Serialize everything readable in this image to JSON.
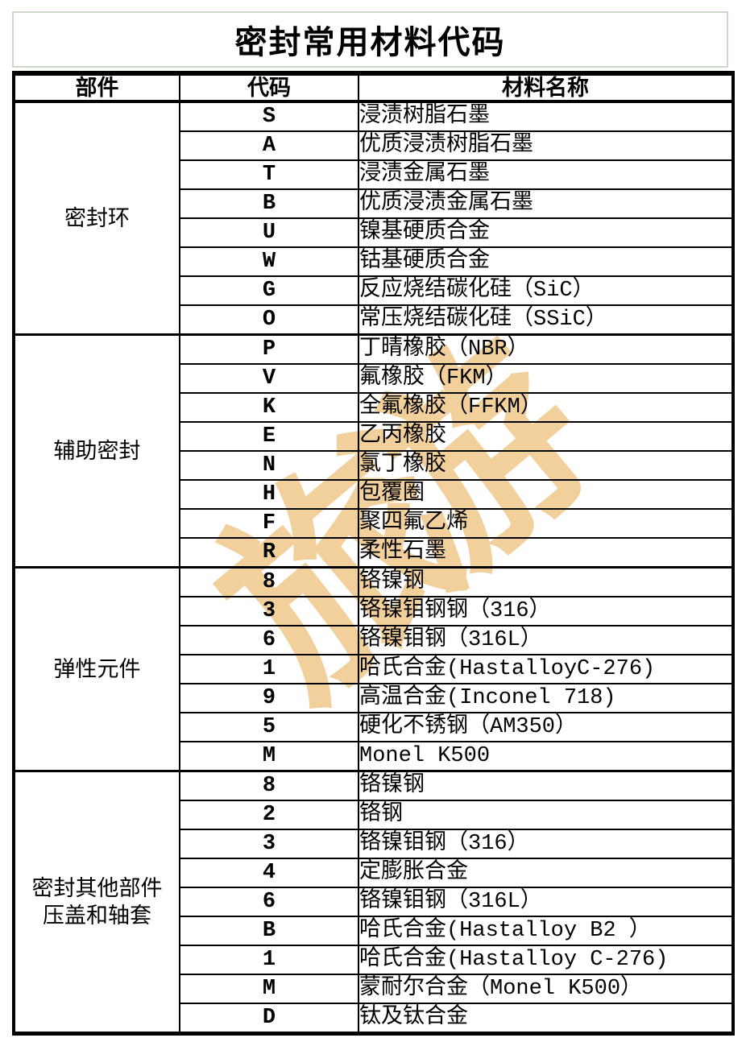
{
  "title": "密封常用材料代码",
  "watermark": {
    "text": "旅游"
  },
  "colors": {
    "title_border_green": "#ccd8cb",
    "table_line_black": "#000000",
    "watermark_tan": "#f2d09c",
    "background": "#ffffff"
  },
  "table": {
    "headers": {
      "part": "部件",
      "code": "代码",
      "material": "材料名称"
    },
    "groups": [
      {
        "part_lines": [
          "密封环"
        ],
        "rows": [
          {
            "code": "S",
            "material": "浸渍树脂石墨"
          },
          {
            "code": "A",
            "material": "优质浸渍树脂石墨"
          },
          {
            "code": "T",
            "material": "浸渍金属石墨"
          },
          {
            "code": "B",
            "material": "优质浸渍金属石墨"
          },
          {
            "code": "U",
            "material": "镍基硬质合金"
          },
          {
            "code": "W",
            "material": "钴基硬质合金"
          },
          {
            "code": "G",
            "material": "反应烧结碳化硅（SiC）"
          },
          {
            "code": "O",
            "material": "常压烧结碳化硅（SSiC）"
          }
        ]
      },
      {
        "part_lines": [
          "辅助密封"
        ],
        "rows": [
          {
            "code": "P",
            "material": "丁晴橡胶（NBR）"
          },
          {
            "code": "V",
            "material": "氟橡胶（FKM）"
          },
          {
            "code": "K",
            "material": "全氟橡胶（FFKM）"
          },
          {
            "code": "E",
            "material": "乙丙橡胶"
          },
          {
            "code": "N",
            "material": "氯丁橡胶"
          },
          {
            "code": "H",
            "material": "包覆圈"
          },
          {
            "code": "F",
            "material": "聚四氟乙烯"
          },
          {
            "code": "R",
            "material": "柔性石墨"
          }
        ]
      },
      {
        "part_lines": [
          "弹性元件"
        ],
        "rows": [
          {
            "code": "8",
            "material": "铬镍钢"
          },
          {
            "code": "3",
            "material": "铬镍钼钢钢（316）"
          },
          {
            "code": "6",
            "material": "铬镍钼钢（316L）"
          },
          {
            "code": "1",
            "material": "哈氏合金(HastalloyC-276)"
          },
          {
            "code": "9",
            "material": "高温合金(Inconel 718)"
          },
          {
            "code": "5",
            "material": "硬化不锈钢（AM350）"
          },
          {
            "code": "M",
            "material": "Monel K500"
          }
        ]
      },
      {
        "part_lines": [
          "密封其他部件",
          "压盖和轴套"
        ],
        "rows": [
          {
            "code": "8",
            "material": "铬镍钢"
          },
          {
            "code": "2",
            "material": "铬钢"
          },
          {
            "code": "3",
            "material": "铬镍钼钢（316）"
          },
          {
            "code": "4",
            "material": "定膨胀合金"
          },
          {
            "code": "6",
            "material": "铬镍钼钢（316L）"
          },
          {
            "code": "B",
            "material": "哈氏合金(Hastalloy B2 ）"
          },
          {
            "code": "1",
            "material": "哈氏合金(Hastalloy C-276)"
          },
          {
            "code": "M",
            "material": "蒙耐尔合金（Monel K500）"
          },
          {
            "code": "D",
            "material": "钛及钛合金"
          }
        ]
      }
    ]
  }
}
